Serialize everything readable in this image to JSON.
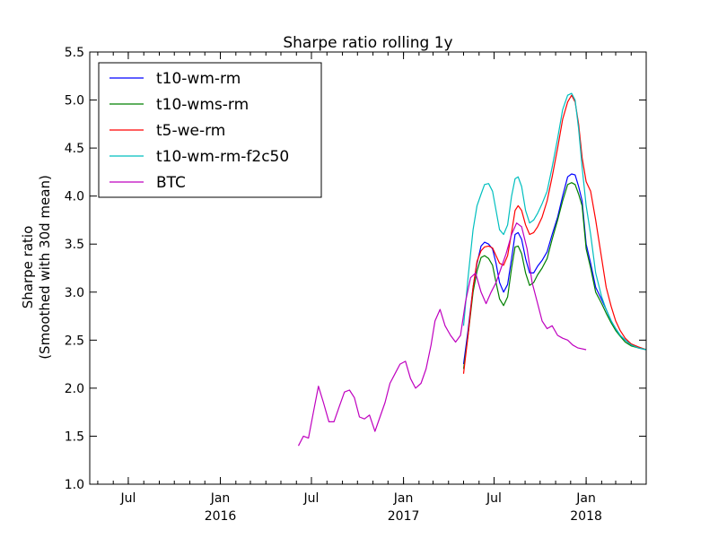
{
  "chart_data": {
    "type": "line",
    "title": "Sharpe ratio rolling 1y",
    "ylabel_line1": "Sharpe ratio",
    "ylabel_line2": "(Smoothed with 30d mean)",
    "xlabel": "",
    "x_unit": "date",
    "xlim": [
      "2015-04-15",
      "2018-05-01"
    ],
    "ylim": [
      1.0,
      5.5
    ],
    "yticks": [
      1.0,
      1.5,
      2.0,
      2.5,
      3.0,
      3.5,
      4.0,
      4.5,
      5.0,
      5.5
    ],
    "ytick_labels": [
      "1.0",
      "1.5",
      "2.0",
      "2.5",
      "3.0",
      "3.5",
      "4.0",
      "4.5",
      "5.0",
      "5.5"
    ],
    "xticks": [
      {
        "date": "2015-07-01",
        "line1": "Jul",
        "line2": ""
      },
      {
        "date": "2016-01-01",
        "line1": "Jan",
        "line2": "2016"
      },
      {
        "date": "2016-07-01",
        "line1": "Jul",
        "line2": ""
      },
      {
        "date": "2017-01-01",
        "line1": "Jan",
        "line2": "2017"
      },
      {
        "date": "2017-07-01",
        "line1": "Jul",
        "line2": ""
      },
      {
        "date": "2018-01-01",
        "line1": "Jan",
        "line2": "2018"
      }
    ],
    "grid": false,
    "legend_position": "top-left",
    "series": [
      {
        "name": "t10-wm-rm",
        "color": "#0000ff",
        "points": [
          [
            "2017-05-01",
            2.25
          ],
          [
            "2017-05-10",
            2.6
          ],
          [
            "2017-05-20",
            3.05
          ],
          [
            "2017-05-28",
            3.3
          ],
          [
            "2017-06-05",
            3.48
          ],
          [
            "2017-06-12",
            3.52
          ],
          [
            "2017-06-20",
            3.5
          ],
          [
            "2017-06-28",
            3.45
          ],
          [
            "2017-07-05",
            3.3
          ],
          [
            "2017-07-12",
            3.1
          ],
          [
            "2017-07-20",
            3.0
          ],
          [
            "2017-07-28",
            3.08
          ],
          [
            "2017-08-05",
            3.35
          ],
          [
            "2017-08-12",
            3.6
          ],
          [
            "2017-08-18",
            3.62
          ],
          [
            "2017-08-25",
            3.55
          ],
          [
            "2017-09-02",
            3.35
          ],
          [
            "2017-09-10",
            3.2
          ],
          [
            "2017-09-18",
            3.2
          ],
          [
            "2017-09-26",
            3.27
          ],
          [
            "2017-10-05",
            3.33
          ],
          [
            "2017-10-15",
            3.42
          ],
          [
            "2017-10-25",
            3.6
          ],
          [
            "2017-11-05",
            3.78
          ],
          [
            "2017-11-15",
            4.0
          ],
          [
            "2017-11-25",
            4.2
          ],
          [
            "2017-12-03",
            4.23
          ],
          [
            "2017-12-10",
            4.22
          ],
          [
            "2017-12-17",
            4.1
          ],
          [
            "2017-12-24",
            3.95
          ],
          [
            "2018-01-01",
            3.5
          ],
          [
            "2018-01-10",
            3.3
          ],
          [
            "2018-01-20",
            3.05
          ],
          [
            "2018-02-01",
            2.92
          ],
          [
            "2018-02-10",
            2.82
          ],
          [
            "2018-02-20",
            2.7
          ],
          [
            "2018-03-01",
            2.62
          ],
          [
            "2018-03-10",
            2.55
          ],
          [
            "2018-03-20",
            2.5
          ],
          [
            "2018-04-01",
            2.45
          ],
          [
            "2018-04-15",
            2.42
          ],
          [
            "2018-05-01",
            2.4
          ]
        ]
      },
      {
        "name": "t10-wms-rm",
        "color": "#008000",
        "points": [
          [
            "2017-05-01",
            2.2
          ],
          [
            "2017-05-10",
            2.55
          ],
          [
            "2017-05-20",
            3.0
          ],
          [
            "2017-05-28",
            3.22
          ],
          [
            "2017-06-05",
            3.36
          ],
          [
            "2017-06-12",
            3.38
          ],
          [
            "2017-06-20",
            3.35
          ],
          [
            "2017-06-28",
            3.28
          ],
          [
            "2017-07-05",
            3.1
          ],
          [
            "2017-07-12",
            2.93
          ],
          [
            "2017-07-20",
            2.86
          ],
          [
            "2017-07-28",
            2.95
          ],
          [
            "2017-08-05",
            3.25
          ],
          [
            "2017-08-12",
            3.47
          ],
          [
            "2017-08-18",
            3.48
          ],
          [
            "2017-08-25",
            3.4
          ],
          [
            "2017-09-02",
            3.2
          ],
          [
            "2017-09-10",
            3.07
          ],
          [
            "2017-09-18",
            3.1
          ],
          [
            "2017-09-26",
            3.18
          ],
          [
            "2017-10-05",
            3.25
          ],
          [
            "2017-10-15",
            3.35
          ],
          [
            "2017-10-25",
            3.55
          ],
          [
            "2017-11-05",
            3.75
          ],
          [
            "2017-11-15",
            3.95
          ],
          [
            "2017-11-25",
            4.12
          ],
          [
            "2017-12-03",
            4.14
          ],
          [
            "2017-12-10",
            4.12
          ],
          [
            "2017-12-17",
            4.02
          ],
          [
            "2017-12-24",
            3.9
          ],
          [
            "2018-01-01",
            3.45
          ],
          [
            "2018-01-10",
            3.25
          ],
          [
            "2018-01-20",
            3.0
          ],
          [
            "2018-02-01",
            2.88
          ],
          [
            "2018-02-10",
            2.78
          ],
          [
            "2018-02-20",
            2.68
          ],
          [
            "2018-03-01",
            2.6
          ],
          [
            "2018-03-10",
            2.54
          ],
          [
            "2018-03-20",
            2.48
          ],
          [
            "2018-04-01",
            2.44
          ],
          [
            "2018-04-15",
            2.42
          ],
          [
            "2018-05-01",
            2.4
          ]
        ]
      },
      {
        "name": "t5-we-rm",
        "color": "#ff0000",
        "points": [
          [
            "2017-05-01",
            2.15
          ],
          [
            "2017-05-10",
            2.55
          ],
          [
            "2017-05-20",
            3.05
          ],
          [
            "2017-05-28",
            3.32
          ],
          [
            "2017-06-05",
            3.43
          ],
          [
            "2017-06-12",
            3.47
          ],
          [
            "2017-06-20",
            3.48
          ],
          [
            "2017-06-28",
            3.46
          ],
          [
            "2017-07-05",
            3.38
          ],
          [
            "2017-07-12",
            3.3
          ],
          [
            "2017-07-20",
            3.28
          ],
          [
            "2017-07-28",
            3.38
          ],
          [
            "2017-08-05",
            3.62
          ],
          [
            "2017-08-12",
            3.85
          ],
          [
            "2017-08-18",
            3.9
          ],
          [
            "2017-08-25",
            3.85
          ],
          [
            "2017-09-02",
            3.7
          ],
          [
            "2017-09-10",
            3.6
          ],
          [
            "2017-09-18",
            3.62
          ],
          [
            "2017-09-26",
            3.68
          ],
          [
            "2017-10-05",
            3.78
          ],
          [
            "2017-10-15",
            3.95
          ],
          [
            "2017-10-25",
            4.2
          ],
          [
            "2017-11-05",
            4.5
          ],
          [
            "2017-11-15",
            4.8
          ],
          [
            "2017-11-25",
            4.98
          ],
          [
            "2017-12-03",
            5.05
          ],
          [
            "2017-12-10",
            4.98
          ],
          [
            "2017-12-17",
            4.75
          ],
          [
            "2017-12-24",
            4.4
          ],
          [
            "2018-01-01",
            4.15
          ],
          [
            "2018-01-10",
            4.05
          ],
          [
            "2018-01-20",
            3.75
          ],
          [
            "2018-02-01",
            3.35
          ],
          [
            "2018-02-10",
            3.05
          ],
          [
            "2018-02-20",
            2.85
          ],
          [
            "2018-03-01",
            2.7
          ],
          [
            "2018-03-10",
            2.6
          ],
          [
            "2018-03-20",
            2.52
          ],
          [
            "2018-04-01",
            2.46
          ],
          [
            "2018-04-15",
            2.43
          ],
          [
            "2018-05-01",
            2.4
          ]
        ]
      },
      {
        "name": "t10-wm-rm-f2c50",
        "color": "#00bfbf",
        "points": [
          [
            "2017-05-01",
            2.65
          ],
          [
            "2017-05-10",
            3.15
          ],
          [
            "2017-05-20",
            3.65
          ],
          [
            "2017-05-28",
            3.9
          ],
          [
            "2017-06-05",
            4.02
          ],
          [
            "2017-06-12",
            4.12
          ],
          [
            "2017-06-20",
            4.13
          ],
          [
            "2017-06-28",
            4.05
          ],
          [
            "2017-07-05",
            3.85
          ],
          [
            "2017-07-12",
            3.65
          ],
          [
            "2017-07-20",
            3.6
          ],
          [
            "2017-07-28",
            3.7
          ],
          [
            "2017-08-05",
            4.0
          ],
          [
            "2017-08-12",
            4.18
          ],
          [
            "2017-08-18",
            4.2
          ],
          [
            "2017-08-25",
            4.1
          ],
          [
            "2017-09-02",
            3.85
          ],
          [
            "2017-09-10",
            3.72
          ],
          [
            "2017-09-18",
            3.75
          ],
          [
            "2017-09-26",
            3.82
          ],
          [
            "2017-10-05",
            3.92
          ],
          [
            "2017-10-15",
            4.05
          ],
          [
            "2017-10-25",
            4.3
          ],
          [
            "2017-11-05",
            4.6
          ],
          [
            "2017-11-15",
            4.9
          ],
          [
            "2017-11-25",
            5.05
          ],
          [
            "2017-12-03",
            5.07
          ],
          [
            "2017-12-10",
            5.0
          ],
          [
            "2017-12-17",
            4.7
          ],
          [
            "2017-12-24",
            4.3
          ],
          [
            "2018-01-01",
            3.9
          ],
          [
            "2018-01-10",
            3.6
          ],
          [
            "2018-01-20",
            3.2
          ],
          [
            "2018-02-01",
            2.95
          ],
          [
            "2018-02-10",
            2.82
          ],
          [
            "2018-02-20",
            2.7
          ],
          [
            "2018-03-01",
            2.62
          ],
          [
            "2018-03-10",
            2.55
          ],
          [
            "2018-03-20",
            2.5
          ],
          [
            "2018-04-01",
            2.45
          ],
          [
            "2018-04-15",
            2.42
          ],
          [
            "2018-05-01",
            2.4
          ]
        ]
      },
      {
        "name": "BTC",
        "color": "#bf00bf",
        "points": [
          [
            "2016-06-05",
            1.4
          ],
          [
            "2016-06-15",
            1.5
          ],
          [
            "2016-06-25",
            1.48
          ],
          [
            "2016-07-05",
            1.75
          ],
          [
            "2016-07-15",
            2.02
          ],
          [
            "2016-07-25",
            1.85
          ],
          [
            "2016-08-05",
            1.65
          ],
          [
            "2016-08-15",
            1.65
          ],
          [
            "2016-08-25",
            1.8
          ],
          [
            "2016-09-05",
            1.96
          ],
          [
            "2016-09-15",
            1.98
          ],
          [
            "2016-09-25",
            1.9
          ],
          [
            "2016-10-05",
            1.7
          ],
          [
            "2016-10-15",
            1.68
          ],
          [
            "2016-10-25",
            1.72
          ],
          [
            "2016-11-05",
            1.55
          ],
          [
            "2016-11-15",
            1.7
          ],
          [
            "2016-11-25",
            1.85
          ],
          [
            "2016-12-05",
            2.05
          ],
          [
            "2016-12-15",
            2.15
          ],
          [
            "2016-12-25",
            2.25
          ],
          [
            "2017-01-05",
            2.28
          ],
          [
            "2017-01-15",
            2.1
          ],
          [
            "2017-01-25",
            2.0
          ],
          [
            "2017-02-05",
            2.05
          ],
          [
            "2017-02-15",
            2.2
          ],
          [
            "2017-02-25",
            2.45
          ],
          [
            "2017-03-05",
            2.7
          ],
          [
            "2017-03-15",
            2.82
          ],
          [
            "2017-03-25",
            2.65
          ],
          [
            "2017-04-05",
            2.55
          ],
          [
            "2017-04-15",
            2.48
          ],
          [
            "2017-04-25",
            2.55
          ],
          [
            "2017-05-05",
            2.9
          ],
          [
            "2017-05-15",
            3.15
          ],
          [
            "2017-05-25",
            3.2
          ],
          [
            "2017-06-05",
            3.0
          ],
          [
            "2017-06-15",
            2.88
          ],
          [
            "2017-06-25",
            3.0
          ],
          [
            "2017-07-05",
            3.1
          ],
          [
            "2017-07-15",
            3.25
          ],
          [
            "2017-07-25",
            3.4
          ],
          [
            "2017-08-05",
            3.6
          ],
          [
            "2017-08-15",
            3.72
          ],
          [
            "2017-08-25",
            3.68
          ],
          [
            "2017-09-05",
            3.45
          ],
          [
            "2017-09-15",
            3.1
          ],
          [
            "2017-09-25",
            2.9
          ],
          [
            "2017-10-05",
            2.7
          ],
          [
            "2017-10-15",
            2.62
          ],
          [
            "2017-10-25",
            2.65
          ],
          [
            "2017-11-05",
            2.55
          ],
          [
            "2017-11-15",
            2.52
          ],
          [
            "2017-11-25",
            2.5
          ],
          [
            "2017-12-05",
            2.45
          ],
          [
            "2017-12-15",
            2.42
          ],
          [
            "2018-01-01",
            2.4
          ]
        ]
      }
    ]
  }
}
